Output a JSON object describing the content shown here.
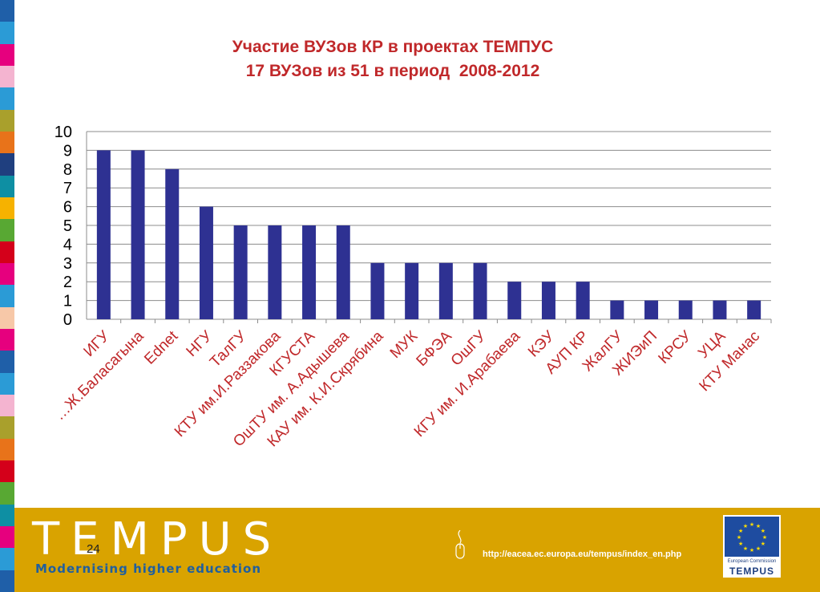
{
  "title": {
    "line1": "Участие ВУЗов КР в проектах ТЕМПУС",
    "line2": "17 ВУЗов из 51 в период  2008-2012"
  },
  "chart_data": {
    "type": "bar",
    "categories": [
      "ИГУ",
      "…Ж.Баласагына",
      "Ednet",
      "НГУ",
      "ТалГУ",
      "КТУ им.И.Раззакова",
      "КГУСТА",
      "ОшТУ им. А.Адышева",
      "КАУ им. К.И.Скрябина",
      "МУК",
      "БФЭА",
      "ОшГУ",
      "КГУ им. И.Арабаева",
      "КЭУ",
      "АУП КР",
      "ЖалГУ",
      "ЖИЭиП",
      "КРСУ",
      "УЦА",
      "КТУ Манас"
    ],
    "values": [
      9,
      9,
      8,
      6,
      5,
      5,
      5,
      5,
      3,
      3,
      3,
      3,
      2,
      2,
      2,
      1,
      1,
      1,
      1,
      1
    ],
    "ylim": [
      0,
      10
    ],
    "yticks": [
      0,
      1,
      2,
      3,
      4,
      5,
      6,
      7,
      8,
      9,
      10
    ],
    "grid": true,
    "bar_color": "#2e3192",
    "label_color": "#c0282a"
  },
  "footer": {
    "brand": "TEMPUS",
    "tagline": "Modernising higher education",
    "slide_number": "24",
    "url": "http://eacea.ec.europa.eu/tempus/index_en.php",
    "eu_caption": "European Commission",
    "eu_brand": "TEMPUS",
    "background": "#d9a300"
  },
  "stripe_colors": [
    "#1f5fa8",
    "#2b9bd6",
    "#e6007e",
    "#f4b4d0",
    "#2b9bd6",
    "#a9a02c",
    "#e8731a",
    "#1f3f7f",
    "#0e8fa3",
    "#f6b200",
    "#58a833",
    "#d4001a",
    "#e6007e",
    "#2b9bd6",
    "#f7c8a8",
    "#e6007e",
    "#1f5fa8",
    "#2b9bd6",
    "#f4b4d0",
    "#a9a02c",
    "#e8731a",
    "#d4001a",
    "#58a833",
    "#0e8fa3",
    "#e6007e",
    "#2b9bd6",
    "#1f5fa8"
  ]
}
